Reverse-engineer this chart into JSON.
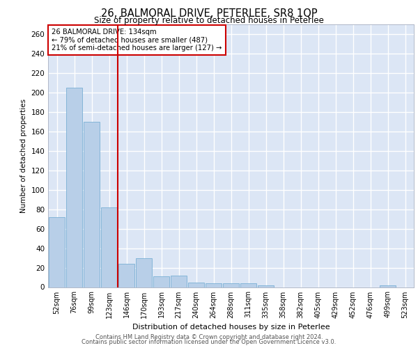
{
  "title1": "26, BALMORAL DRIVE, PETERLEE, SR8 1QP",
  "title2": "Size of property relative to detached houses in Peterlee",
  "xlabel": "Distribution of detached houses by size in Peterlee",
  "ylabel": "Number of detached properties",
  "categories": [
    "52sqm",
    "76sqm",
    "99sqm",
    "123sqm",
    "146sqm",
    "170sqm",
    "193sqm",
    "217sqm",
    "240sqm",
    "264sqm",
    "288sqm",
    "311sqm",
    "335sqm",
    "358sqm",
    "382sqm",
    "405sqm",
    "429sqm",
    "452sqm",
    "476sqm",
    "499sqm",
    "523sqm"
  ],
  "values": [
    72,
    205,
    170,
    82,
    24,
    30,
    11,
    12,
    5,
    4,
    4,
    4,
    2,
    0,
    0,
    0,
    0,
    0,
    0,
    2,
    0
  ],
  "bar_color": "#b8cfe8",
  "bar_edge_color": "#7aafd4",
  "vline_x": 3.5,
  "vline_color": "#cc0000",
  "annotation_text": "26 BALMORAL DRIVE: 134sqm\n← 79% of detached houses are smaller (487)\n21% of semi-detached houses are larger (127) →",
  "annotation_box_color": "#ffffff",
  "annotation_box_edge": "#cc0000",
  "fig_bg": "#ffffff",
  "plot_bg": "#dce6f5",
  "grid_color": "#ffffff",
  "yticks": [
    0,
    20,
    40,
    60,
    80,
    100,
    120,
    140,
    160,
    180,
    200,
    220,
    240,
    260
  ],
  "ylim": [
    0,
    270
  ],
  "footer1": "Contains HM Land Registry data © Crown copyright and database right 2024.",
  "footer2": "Contains public sector information licensed under the Open Government Licence v3.0."
}
